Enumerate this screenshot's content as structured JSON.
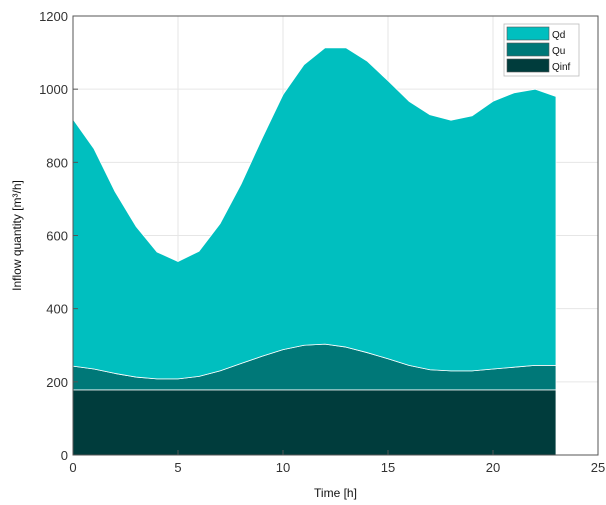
{
  "chart_data": {
    "type": "area",
    "stacked": true,
    "title": "",
    "xlabel": "Time [h]",
    "ylabel": "Inflow quantity [m³/h]",
    "xlim": [
      0,
      25
    ],
    "ylim": [
      0,
      1200
    ],
    "xticks": [
      0,
      5,
      10,
      15,
      20,
      25
    ],
    "yticks": [
      0,
      200,
      400,
      600,
      800,
      1000,
      1200
    ],
    "grid": true,
    "legend_position": "top-right",
    "x": [
      0,
      1,
      2,
      3,
      4,
      5,
      6,
      7,
      8,
      9,
      10,
      11,
      12,
      13,
      14,
      15,
      16,
      17,
      18,
      19,
      20,
      21,
      22,
      23
    ],
    "series": [
      {
        "name": "Qinf",
        "color": "#003c3c",
        "values": [
          178,
          178,
          178,
          178,
          178,
          178,
          178,
          178,
          178,
          178,
          178,
          178,
          178,
          178,
          178,
          178,
          178,
          178,
          178,
          178,
          178,
          178,
          178,
          178
        ]
      },
      {
        "name": "Qu",
        "color": "#007878",
        "values": [
          65,
          57,
          45,
          35,
          30,
          30,
          37,
          52,
          72,
          92,
          110,
          122,
          125,
          117,
          102,
          85,
          67,
          55,
          52,
          52,
          57,
          62,
          67,
          67
        ]
      },
      {
        "name": "Qd",
        "color": "#00bfbf",
        "values": [
          675,
          602,
          497,
          412,
          347,
          321,
          342,
          402,
          490,
          595,
          697,
          767,
          810,
          818,
          797,
          760,
          722,
          697,
          685,
          697,
          732,
          750,
          755,
          735
        ]
      }
    ],
    "legend_order": [
      "Qd",
      "Qu",
      "Qinf"
    ]
  }
}
